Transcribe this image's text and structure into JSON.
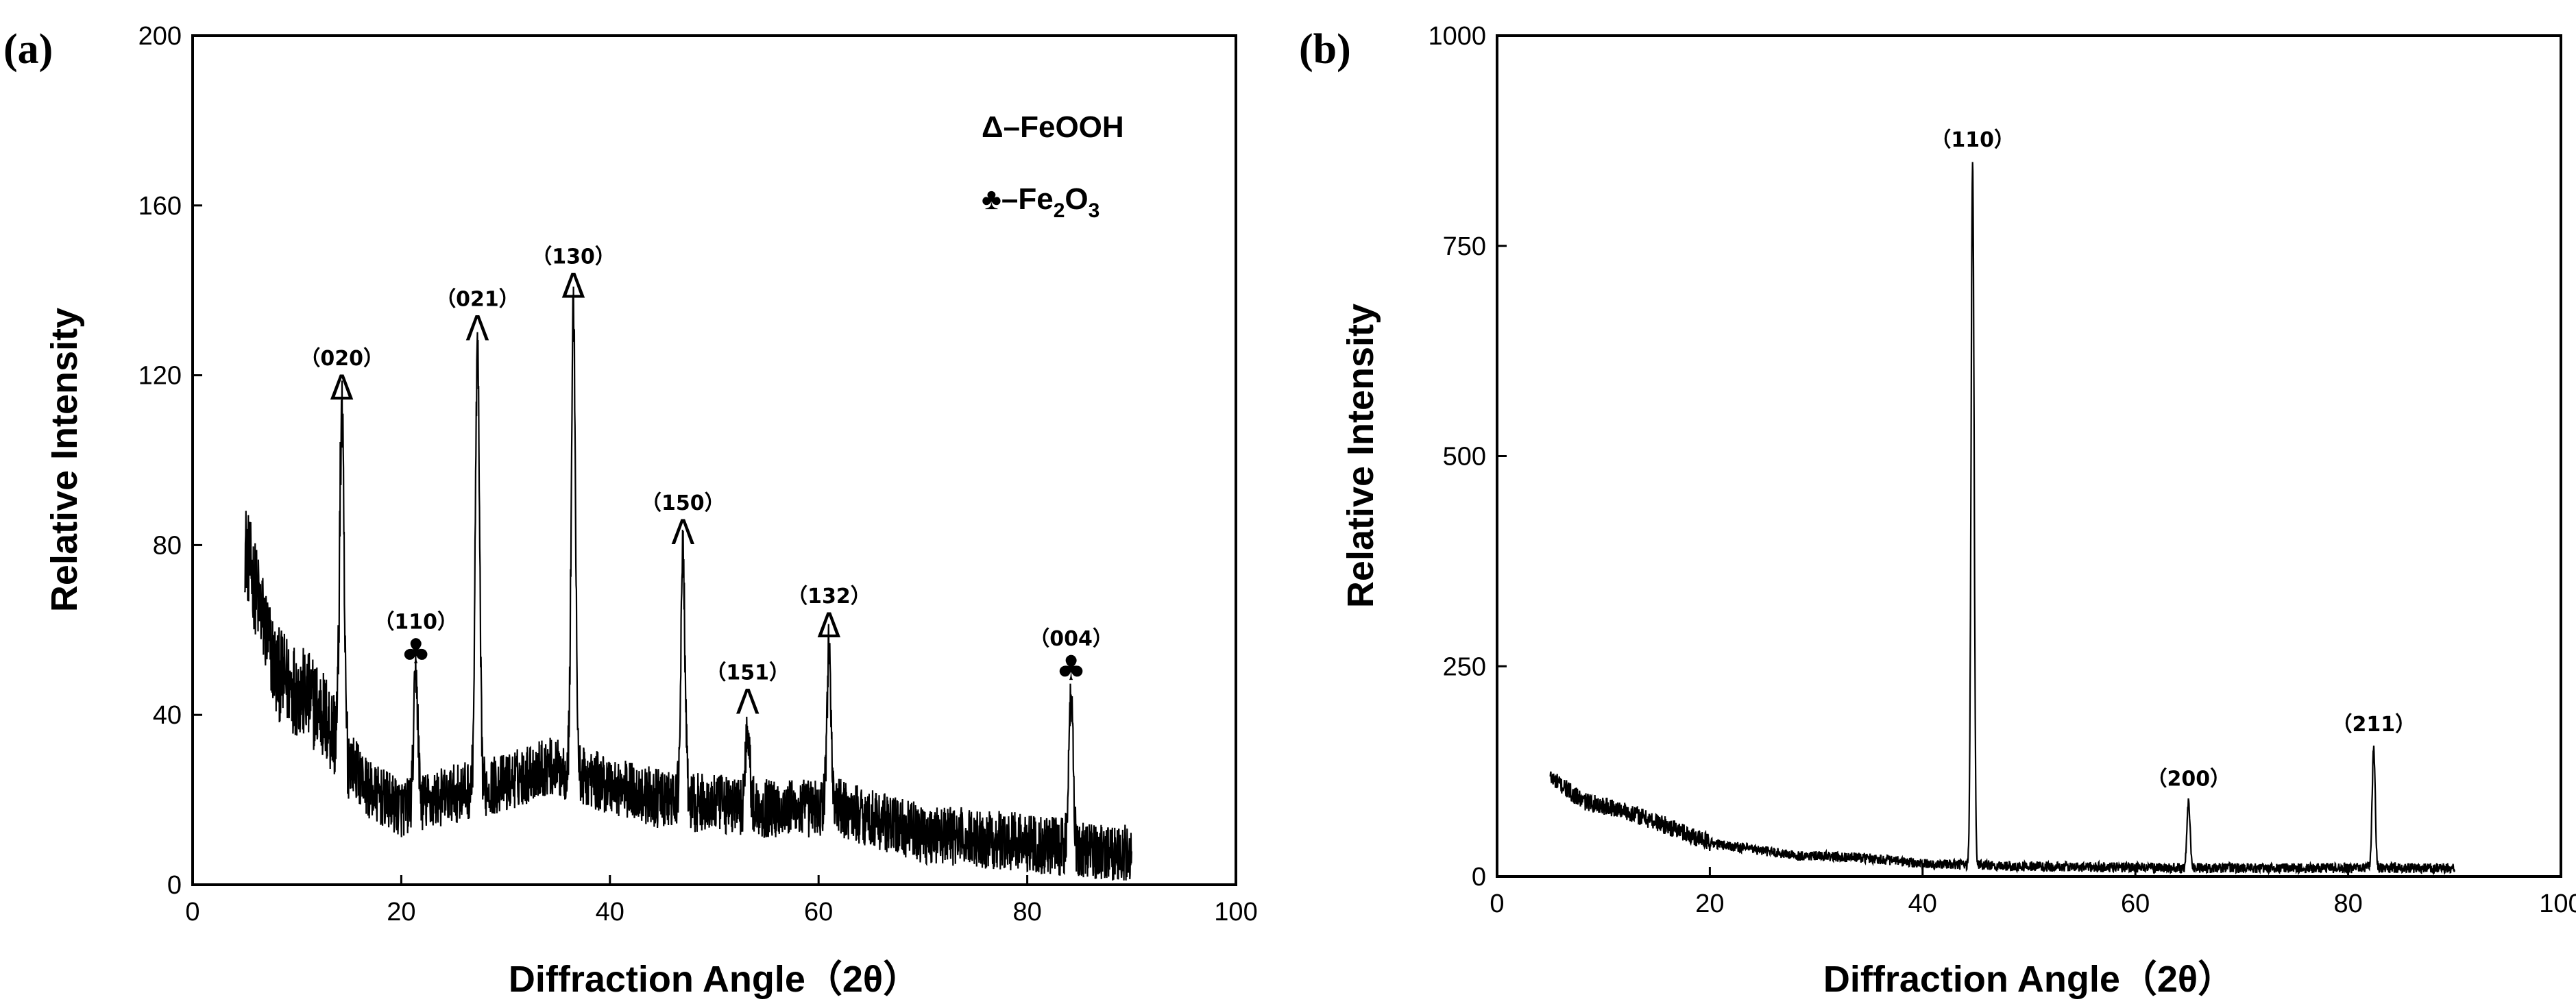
{
  "chart_data": [
    {
      "panel_label": "(a)",
      "type": "line",
      "xlabel": "Diffraction Angle（2θ）",
      "ylabel": "Relative Intensity",
      "xlim": [
        0,
        100
      ],
      "ylim": [
        0,
        200
      ],
      "xticks": [
        0,
        20,
        40,
        60,
        80,
        100
      ],
      "yticks": [
        0,
        40,
        80,
        120,
        160,
        200
      ],
      "x_range": [
        5,
        90
      ],
      "baseline": [
        [
          5,
          80
        ],
        [
          8,
          50
        ],
        [
          12,
          42
        ],
        [
          15,
          30
        ],
        [
          17,
          22
        ],
        [
          20,
          18
        ],
        [
          26,
          22
        ],
        [
          30,
          24
        ],
        [
          34,
          28
        ],
        [
          38,
          25
        ],
        [
          45,
          20
        ],
        [
          55,
          18
        ],
        [
          62,
          18
        ],
        [
          70,
          12
        ],
        [
          80,
          10
        ],
        [
          90,
          7
        ]
      ],
      "noise": 7,
      "peaks": [
        {
          "x": 14.3,
          "y": 112,
          "label": "（020）",
          "marker": "Δ"
        },
        {
          "x": 21.4,
          "y": 50,
          "label": "（110）",
          "marker": "♣"
        },
        {
          "x": 27.3,
          "y": 126,
          "label": "（021）",
          "marker": "Λ"
        },
        {
          "x": 36.5,
          "y": 136,
          "label": "（130）",
          "marker": "Δ"
        },
        {
          "x": 47.0,
          "y": 78,
          "label": "（150）",
          "marker": "Λ"
        },
        {
          "x": 53.2,
          "y": 38,
          "label": "（151）",
          "marker": "Λ"
        },
        {
          "x": 61.0,
          "y": 56,
          "label": "（132）",
          "marker": "Δ"
        },
        {
          "x": 84.2,
          "y": 46,
          "label": "（004）",
          "marker": "♣"
        }
      ],
      "legend": [
        {
          "symbol": "Δ",
          "text": "–FeOOH"
        },
        {
          "symbol": "♣",
          "text": "–Fe",
          "sub": "2",
          "text2": "O",
          "sub2": "3"
        }
      ]
    },
    {
      "panel_label": "(b)",
      "type": "line",
      "xlabel": "Diffraction Angle（2θ）",
      "ylabel": "Relative Intensity",
      "xlim": [
        0,
        100
      ],
      "ylim": [
        0,
        1000
      ],
      "xticks": [
        0,
        20,
        40,
        60,
        80,
        100
      ],
      "yticks": [
        0,
        250,
        500,
        750,
        1000
      ],
      "x_range": [
        5,
        90
      ],
      "baseline": [
        [
          5,
          118
        ],
        [
          8,
          90
        ],
        [
          12,
          78
        ],
        [
          16,
          60
        ],
        [
          20,
          40
        ],
        [
          28,
          25
        ],
        [
          35,
          22
        ],
        [
          40,
          15
        ],
        [
          50,
          12
        ],
        [
          65,
          10
        ],
        [
          90,
          10
        ]
      ],
      "noise": 12,
      "peaks": [
        {
          "x": 44.7,
          "y": 850,
          "label": "（110）"
        },
        {
          "x": 65.0,
          "y": 90,
          "label": "（200）"
        },
        {
          "x": 82.4,
          "y": 155,
          "label": "（211）"
        }
      ]
    }
  ]
}
